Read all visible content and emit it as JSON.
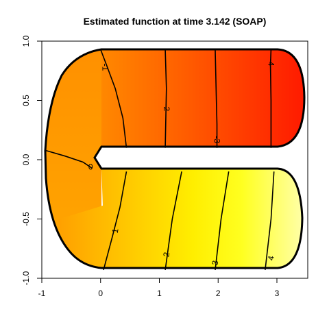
{
  "chart_data": {
    "type": "heatmap",
    "title": "Estimated function at time 3.142 (SOAP)",
    "xlabel": "",
    "ylabel": "",
    "xlim": [
      -1,
      3.5
    ],
    "ylim": [
      -1,
      1
    ],
    "x_ticks": [
      "-1",
      "0",
      "1",
      "2",
      "3"
    ],
    "y_ticks": [
      "-1.0",
      "-0.5",
      "0.0",
      "0.5",
      "1.0"
    ],
    "colormap": "heat",
    "colors": {
      "low": "#ff1a00",
      "mid": "#ffa000",
      "high": "#ffff00",
      "top": "#ffffa0"
    },
    "contours": [
      {
        "level": "-4",
        "points": [
          [
            2.9,
            0.93
          ],
          [
            2.89,
            0.8
          ],
          [
            2.9,
            0.5
          ],
          [
            2.9,
            0.1
          ]
        ],
        "label_at": [
          2.9,
          0.82
        ]
      },
      {
        "level": "-3",
        "points": [
          [
            1.95,
            0.93
          ],
          [
            1.97,
            0.5
          ],
          [
            1.98,
            0.3
          ],
          [
            1.98,
            0.1
          ]
        ],
        "label_at": [
          1.98,
          0.17
        ]
      },
      {
        "level": "-2",
        "points": [
          [
            1.1,
            0.93
          ],
          [
            1.12,
            0.6
          ],
          [
            1.1,
            0.1
          ]
        ],
        "label_at": [
          1.12,
          0.44
        ]
      },
      {
        "level": "-1",
        "points": [
          [
            0.0,
            0.93
          ],
          [
            0.1,
            0.8
          ],
          [
            0.25,
            0.6
          ],
          [
            0.38,
            0.35
          ],
          [
            0.44,
            0.1
          ]
        ],
        "label_at": [
          0.08,
          0.78
        ]
      },
      {
        "level": "0",
        "points": [
          [
            -0.95,
            0.08
          ],
          [
            -0.6,
            0.03
          ],
          [
            -0.3,
            -0.02
          ],
          [
            -0.15,
            -0.07
          ]
        ],
        "label_at": [
          -0.17,
          -0.06
        ]
      },
      {
        "level": "1",
        "points": [
          [
            0.44,
            -0.1
          ],
          [
            0.33,
            -0.4
          ],
          [
            0.2,
            -0.65
          ],
          [
            0.05,
            -0.93
          ]
        ],
        "label_at": [
          0.25,
          -0.6
        ]
      },
      {
        "level": "2",
        "points": [
          [
            1.38,
            -0.1
          ],
          [
            1.22,
            -0.5
          ],
          [
            1.1,
            -0.93
          ]
        ],
        "label_at": [
          1.12,
          -0.8
        ]
      },
      {
        "level": "3",
        "points": [
          [
            2.18,
            -0.1
          ],
          [
            2.05,
            -0.5
          ],
          [
            1.95,
            -0.93
          ]
        ],
        "label_at": [
          1.95,
          -0.87
        ]
      },
      {
        "level": "4",
        "points": [
          [
            2.95,
            -0.1
          ],
          [
            2.9,
            -0.5
          ],
          [
            2.8,
            -0.93
          ]
        ],
        "label_at": [
          2.9,
          -0.83
        ]
      }
    ]
  }
}
